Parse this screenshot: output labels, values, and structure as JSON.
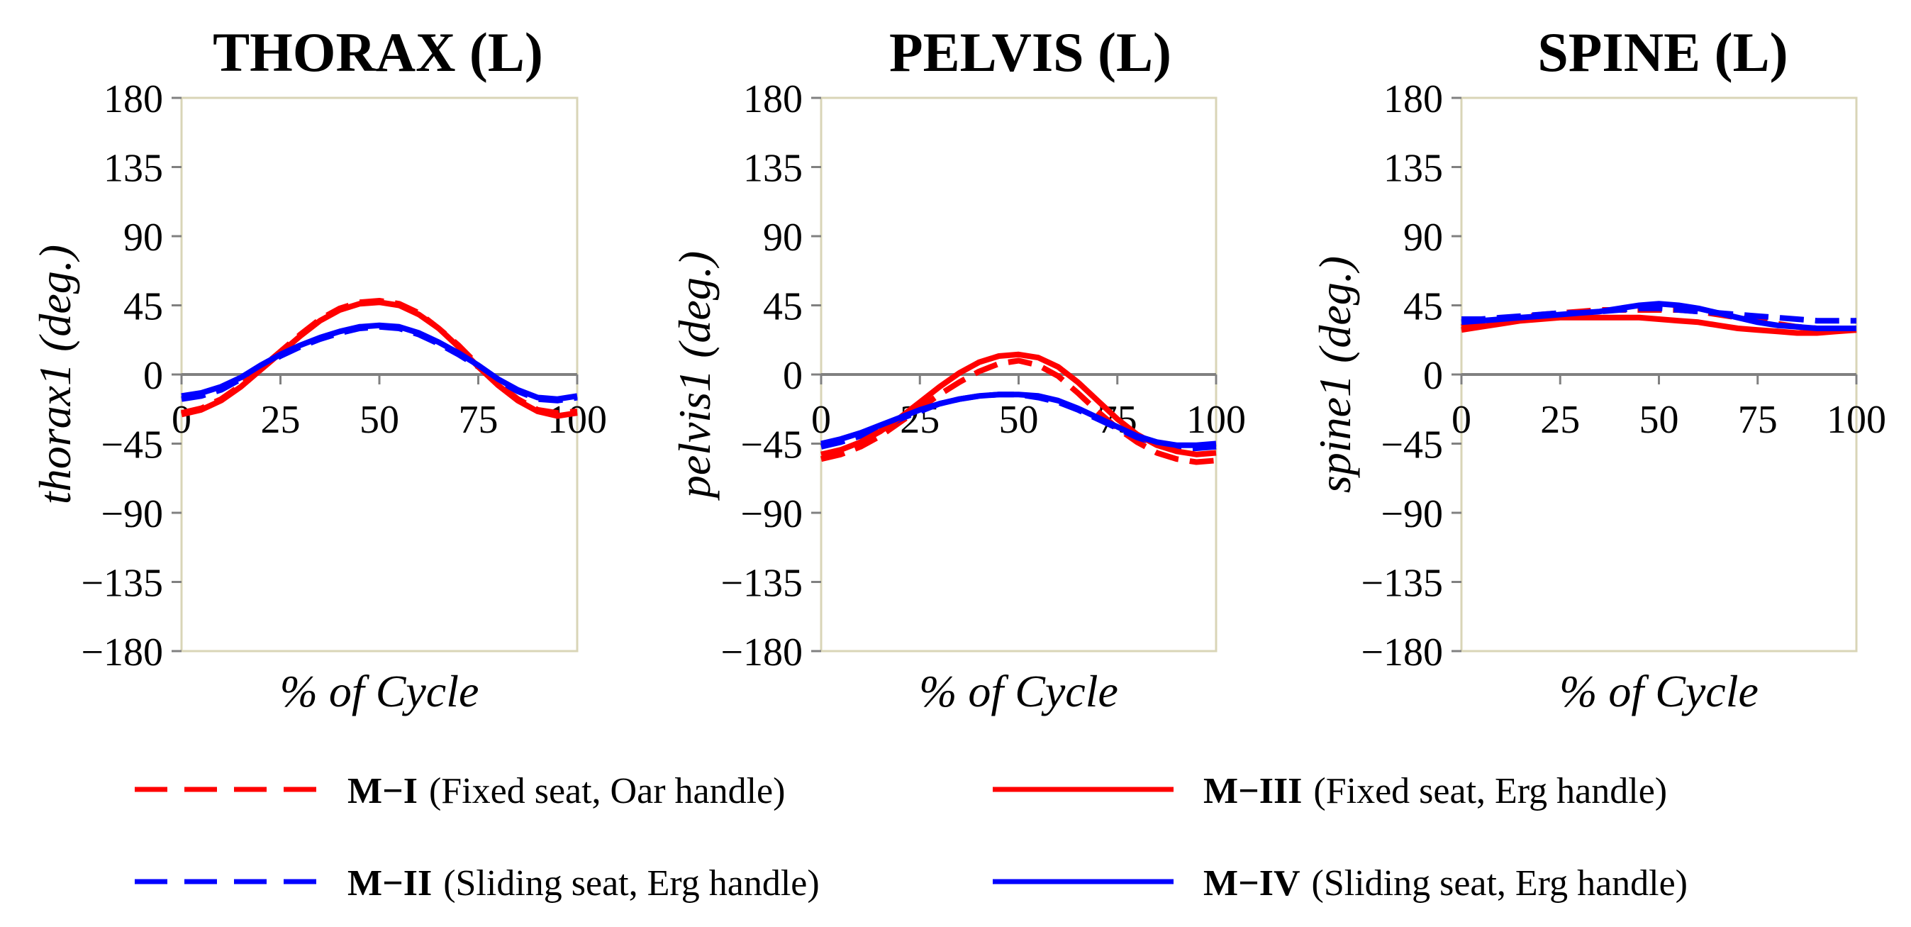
{
  "chart_data": [
    {
      "type": "line",
      "title": "THORAX (L)",
      "xlabel": "% of Cycle",
      "ylabel": "thorax1 (deg.)",
      "xlim": [
        0,
        100
      ],
      "ylim": [
        -180,
        180
      ],
      "xticks": [
        0,
        25,
        50,
        75,
        100
      ],
      "yticks": [
        180,
        135,
        90,
        45,
        0,
        -45,
        -90,
        -135,
        -180
      ],
      "ytick_labels": [
        "180",
        "135",
        "90",
        "45",
        "0",
        "−45",
        "−90",
        "−135",
        "−180"
      ],
      "series": [
        {
          "id": "m1",
          "name": "M−I",
          "x": [
            0,
            5,
            10,
            15,
            20,
            25,
            30,
            35,
            40,
            45,
            50,
            55,
            60,
            65,
            70,
            75,
            80,
            85,
            90,
            95,
            100
          ],
          "y": [
            -25,
            -22,
            -16,
            -7,
            4,
            15,
            26,
            36,
            43,
            47,
            48,
            46,
            40,
            30,
            19,
            6,
            -6,
            -16,
            -23,
            -25,
            -24
          ]
        },
        {
          "id": "m2",
          "name": "M−II",
          "x": [
            0,
            5,
            10,
            15,
            20,
            25,
            30,
            35,
            40,
            45,
            50,
            55,
            60,
            65,
            70,
            75,
            80,
            85,
            90,
            95,
            100
          ],
          "y": [
            -16,
            -14,
            -10,
            -3,
            5,
            12,
            18,
            23,
            27,
            30,
            31,
            30,
            26,
            20,
            13,
            5,
            -4,
            -11,
            -16,
            -17,
            -15
          ]
        },
        {
          "id": "m3",
          "name": "M−III",
          "x": [
            0,
            5,
            10,
            15,
            20,
            25,
            30,
            35,
            40,
            45,
            50,
            55,
            60,
            65,
            70,
            75,
            80,
            85,
            90,
            95,
            100
          ],
          "y": [
            -26,
            -23,
            -17,
            -8,
            3,
            14,
            25,
            35,
            42,
            46,
            47,
            45,
            39,
            30,
            18,
            5,
            -7,
            -17,
            -24,
            -27,
            -25
          ]
        },
        {
          "id": "m4",
          "name": "M−IV",
          "x": [
            0,
            5,
            10,
            15,
            20,
            25,
            30,
            35,
            40,
            45,
            50,
            55,
            60,
            65,
            70,
            75,
            80,
            85,
            90,
            95,
            100
          ],
          "y": [
            -14,
            -12,
            -8,
            -2,
            6,
            13,
            19,
            24,
            28,
            31,
            32,
            31,
            27,
            21,
            14,
            6,
            -3,
            -10,
            -15,
            -16,
            -14
          ]
        }
      ]
    },
    {
      "type": "line",
      "title": "PELVIS (L)",
      "xlabel": "% of Cycle",
      "ylabel": "pelvis1 (deg.)",
      "xlim": [
        0,
        100
      ],
      "ylim": [
        -180,
        180
      ],
      "xticks": [
        0,
        25,
        50,
        75,
        100
      ],
      "yticks": [
        180,
        135,
        90,
        45,
        0,
        -45,
        -90,
        -135,
        -180
      ],
      "ytick_labels": [
        "180",
        "135",
        "90",
        "45",
        "0",
        "−45",
        "−90",
        "−135",
        "−180"
      ],
      "series": [
        {
          "id": "m1",
          "name": "M−I",
          "x": [
            0,
            5,
            10,
            15,
            20,
            25,
            30,
            35,
            40,
            45,
            50,
            55,
            60,
            65,
            70,
            75,
            80,
            85,
            90,
            95,
            100
          ],
          "y": [
            -55,
            -52,
            -47,
            -40,
            -31,
            -22,
            -13,
            -5,
            2,
            7,
            9,
            6,
            -1,
            -12,
            -24,
            -35,
            -44,
            -51,
            -55,
            -57,
            -56
          ]
        },
        {
          "id": "m2",
          "name": "M−II",
          "x": [
            0,
            5,
            10,
            15,
            20,
            25,
            30,
            35,
            40,
            45,
            50,
            55,
            60,
            65,
            70,
            75,
            80,
            85,
            90,
            95,
            100
          ],
          "y": [
            -47,
            -44,
            -40,
            -35,
            -29,
            -24,
            -19,
            -16,
            -14,
            -13,
            -13,
            -15,
            -18,
            -23,
            -29,
            -35,
            -41,
            -45,
            -48,
            -48,
            -47
          ]
        },
        {
          "id": "m3",
          "name": "M−III",
          "x": [
            0,
            5,
            10,
            15,
            20,
            25,
            30,
            35,
            40,
            45,
            50,
            55,
            60,
            65,
            70,
            75,
            80,
            85,
            90,
            95,
            100
          ],
          "y": [
            -52,
            -49,
            -44,
            -37,
            -28,
            -18,
            -8,
            1,
            8,
            12,
            13,
            11,
            5,
            -5,
            -17,
            -29,
            -39,
            -46,
            -50,
            -52,
            -51
          ]
        },
        {
          "id": "m4",
          "name": "M−IV",
          "x": [
            0,
            5,
            10,
            15,
            20,
            25,
            30,
            35,
            40,
            45,
            50,
            55,
            60,
            65,
            70,
            75,
            80,
            85,
            90,
            95,
            100
          ],
          "y": [
            -45,
            -42,
            -38,
            -33,
            -28,
            -23,
            -19,
            -16,
            -14,
            -13,
            -13,
            -14,
            -17,
            -22,
            -28,
            -34,
            -40,
            -44,
            -46,
            -46,
            -45
          ]
        }
      ]
    },
    {
      "type": "line",
      "title": "SPINE (L)",
      "xlabel": "% of Cycle",
      "ylabel": "spine1 (deg.)",
      "xlim": [
        0,
        100
      ],
      "ylim": [
        -180,
        180
      ],
      "xticks": [
        0,
        25,
        50,
        75,
        100
      ],
      "yticks": [
        180,
        135,
        90,
        45,
        0,
        -45,
        -90,
        -135,
        -180
      ],
      "ytick_labels": [
        "180",
        "135",
        "90",
        "45",
        "0",
        "−45",
        "−90",
        "−135",
        "−180"
      ],
      "series": [
        {
          "id": "m1",
          "name": "M−I",
          "x": [
            0,
            5,
            10,
            15,
            20,
            25,
            30,
            35,
            40,
            45,
            50,
            55,
            60,
            65,
            70,
            75,
            80,
            85,
            90,
            95,
            100
          ],
          "y": [
            31,
            33,
            35,
            37,
            39,
            40,
            41,
            42,
            42,
            42,
            42,
            42,
            41,
            39,
            37,
            35,
            33,
            31,
            30,
            30,
            30
          ]
        },
        {
          "id": "m2",
          "name": "M−II",
          "x": [
            0,
            5,
            10,
            15,
            20,
            25,
            30,
            35,
            40,
            45,
            50,
            55,
            60,
            65,
            70,
            75,
            80,
            85,
            90,
            95,
            100
          ],
          "y": [
            36,
            36,
            37,
            38,
            39,
            40,
            40,
            41,
            42,
            43,
            43,
            42,
            41,
            40,
            39,
            38,
            37,
            36,
            35,
            35,
            35
          ]
        },
        {
          "id": "m3",
          "name": "M−III",
          "x": [
            0,
            5,
            10,
            15,
            20,
            25,
            30,
            35,
            40,
            45,
            50,
            55,
            60,
            65,
            70,
            75,
            80,
            85,
            90,
            95,
            100
          ],
          "y": [
            29,
            31,
            33,
            35,
            36,
            37,
            37,
            37,
            37,
            37,
            36,
            35,
            34,
            32,
            30,
            29,
            28,
            27,
            27,
            28,
            29
          ]
        },
        {
          "id": "m4",
          "name": "M−IV",
          "x": [
            0,
            5,
            10,
            15,
            20,
            25,
            30,
            35,
            40,
            45,
            50,
            55,
            60,
            65,
            70,
            75,
            80,
            85,
            90,
            95,
            100
          ],
          "y": [
            34,
            35,
            36,
            37,
            38,
            39,
            40,
            41,
            43,
            45,
            46,
            45,
            43,
            40,
            37,
            34,
            32,
            31,
            30,
            30,
            30
          ]
        }
      ]
    }
  ],
  "legend": {
    "placement": "bottom",
    "items": [
      {
        "id": "m1",
        "code": "M−I",
        "desc": "(Fixed seat, Oar handle)",
        "color": "#ff0000",
        "style": "dashed"
      },
      {
        "id": "m3",
        "code": "M−III",
        "desc": "(Fixed seat, Erg handle)",
        "color": "#ff0000",
        "style": "solid"
      },
      {
        "id": "m2",
        "code": "M−II",
        "desc": "(Sliding seat, Erg handle)",
        "color": "#0000ff",
        "style": "dashed"
      },
      {
        "id": "m4",
        "code": "M−IV",
        "desc": "(Sliding seat, Erg handle)",
        "color": "#0000ff",
        "style": "solid"
      }
    ]
  },
  "colors": {
    "red": "#ff0000",
    "blue": "#0000ff",
    "frame": "#d9d5b7",
    "zero_line": "#808080"
  }
}
